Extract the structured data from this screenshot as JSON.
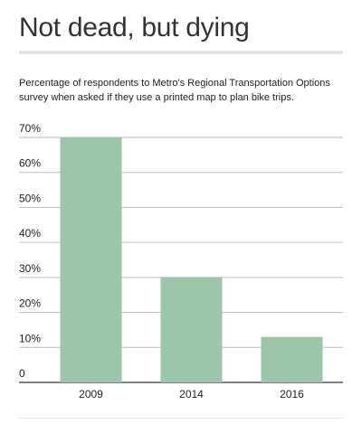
{
  "headline": "Not dead, but dying",
  "description": "Percentage of respondents to Metro's Regional Transportation Options survey when asked if they use a printed map to plan bike trips.",
  "colors": {
    "bar": "#9cc5a9",
    "gridline": "#bdbdbd",
    "baseline": "#333333",
    "text": "#222222"
  },
  "chart_data": {
    "type": "bar",
    "categories": [
      "2009",
      "2014",
      "2016"
    ],
    "values": [
      70,
      30,
      13
    ],
    "ylim": [
      0,
      70
    ],
    "yticks": [
      0,
      10,
      20,
      30,
      40,
      50,
      60,
      70
    ],
    "ytick_labels": [
      "0",
      "10%",
      "20%",
      "30%",
      "40%",
      "50%",
      "60%",
      "70%"
    ],
    "grid": true,
    "xlabel": "",
    "ylabel": ""
  }
}
